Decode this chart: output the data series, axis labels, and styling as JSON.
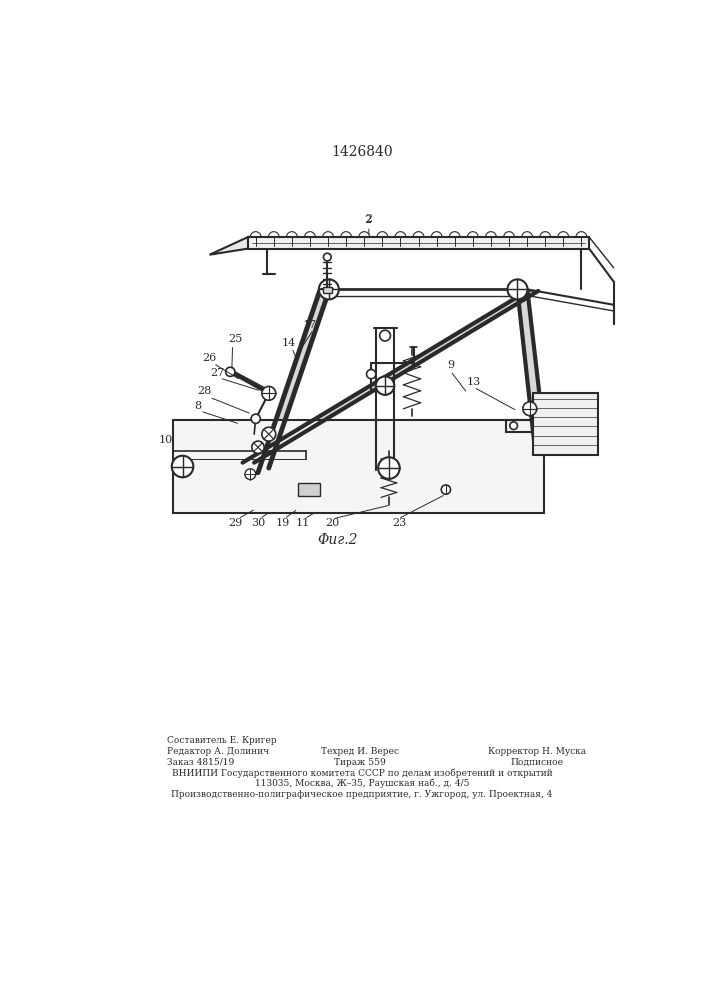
{
  "title": "1426840",
  "fig_label": "Φиг.2",
  "background_color": "#ffffff",
  "line_color": "#2a2a2a",
  "title_fontsize": 10,
  "fig_label_fontsize": 10,
  "footer": {
    "editor": "Редактор А. Долинич",
    "order": "Заказ 4815/19",
    "techred": "Техред И. Верес",
    "tirage": "Тираж 559",
    "corrector": "Корректор Н. Муска",
    "podpisnoe": "Подписное",
    "vniippi": "ВНИИПИ Государственного комитета СССР по делам изобретений и открытий",
    "address": "113035, Москва, Ж–35, Раушская наб., д. 4/5",
    "factory": "Производственно-полиграфическое предприятие, г. Ужгород, ул. Проектная, 4"
  }
}
